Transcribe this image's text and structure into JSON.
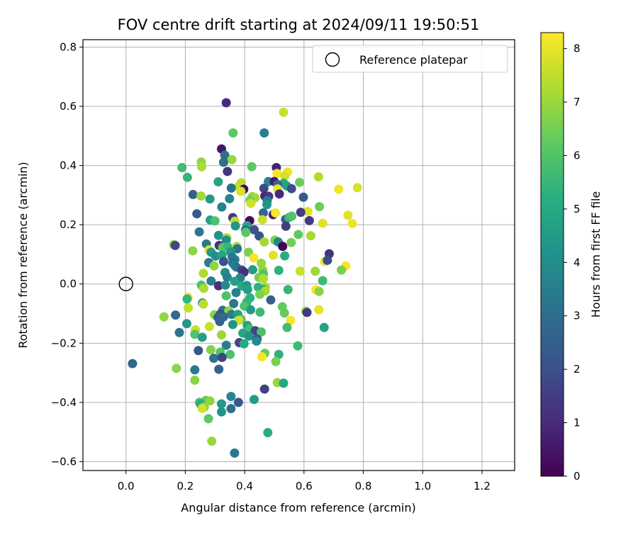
{
  "chart_data": {
    "type": "scatter",
    "title": "FOV centre drift starting at 2024/09/11 19:50:51",
    "xlabel": "Angular distance from reference (arcmin)",
    "ylabel": "Rotation from reference (arcmin)",
    "colorbar_label": "Hours from first FF file",
    "xlim": [
      -0.145,
      1.31
    ],
    "ylim": [
      -0.63,
      0.825
    ],
    "clim": [
      0,
      8.3
    ],
    "xticks": [
      "0.0",
      "0.2",
      "0.4",
      "0.6",
      "0.8",
      "1.0",
      "1.2"
    ],
    "yticks": [
      "−0.6",
      "−0.4",
      "−0.2",
      "0.0",
      "0.2",
      "0.4",
      "0.6",
      "0.8"
    ],
    "cticks": [
      "0",
      "1",
      "2",
      "3",
      "4",
      "5",
      "6",
      "7",
      "8"
    ],
    "grid": true,
    "colormap": "viridis",
    "legend": {
      "position": "top-right",
      "entries": [
        "Reference platepar"
      ]
    },
    "reference_point": {
      "x": 0.0,
      "y": 0.0
    },
    "points": [
      {
        "x": 0.338,
        "y": 0.612,
        "h": 1.0
      },
      {
        "x": 0.531,
        "y": 0.58,
        "h": 7.6
      },
      {
        "x": 0.361,
        "y": 0.51,
        "h": 6.2
      },
      {
        "x": 0.466,
        "y": 0.51,
        "h": 3.6
      },
      {
        "x": 0.322,
        "y": 0.456,
        "h": 0.5
      },
      {
        "x": 0.333,
        "y": 0.435,
        "h": 3.1
      },
      {
        "x": 0.357,
        "y": 0.42,
        "h": 7.0
      },
      {
        "x": 0.254,
        "y": 0.412,
        "h": 6.9
      },
      {
        "x": 0.329,
        "y": 0.411,
        "h": 3.0
      },
      {
        "x": 0.255,
        "y": 0.396,
        "h": 7.2
      },
      {
        "x": 0.189,
        "y": 0.393,
        "h": 5.7
      },
      {
        "x": 0.424,
        "y": 0.396,
        "h": 6.2
      },
      {
        "x": 0.507,
        "y": 0.393,
        "h": 0.8
      },
      {
        "x": 0.342,
        "y": 0.38,
        "h": 1.2
      },
      {
        "x": 0.509,
        "y": 0.373,
        "h": 8.2
      },
      {
        "x": 0.545,
        "y": 0.378,
        "h": 8.1
      },
      {
        "x": 0.535,
        "y": 0.365,
        "h": 7.7
      },
      {
        "x": 0.649,
        "y": 0.362,
        "h": 7.3
      },
      {
        "x": 0.207,
        "y": 0.36,
        "h": 5.4
      },
      {
        "x": 0.311,
        "y": 0.345,
        "h": 4.8
      },
      {
        "x": 0.48,
        "y": 0.346,
        "h": 3.8
      },
      {
        "x": 0.5,
        "y": 0.346,
        "h": 0.6
      },
      {
        "x": 0.389,
        "y": 0.342,
        "h": 7.4
      },
      {
        "x": 0.532,
        "y": 0.34,
        "h": 5.1
      },
      {
        "x": 0.585,
        "y": 0.343,
        "h": 6.4
      },
      {
        "x": 0.511,
        "y": 0.336,
        "h": 2.8
      },
      {
        "x": 0.542,
        "y": 0.331,
        "h": 4.8
      },
      {
        "x": 0.38,
        "y": 0.33,
        "h": 7.5
      },
      {
        "x": 0.355,
        "y": 0.324,
        "h": 3.1
      },
      {
        "x": 0.397,
        "y": 0.32,
        "h": 0.3
      },
      {
        "x": 0.387,
        "y": 0.313,
        "h": 7.8
      },
      {
        "x": 0.465,
        "y": 0.323,
        "h": 1.7
      },
      {
        "x": 0.511,
        "y": 0.321,
        "h": 8.0
      },
      {
        "x": 0.558,
        "y": 0.322,
        "h": 2.0
      },
      {
        "x": 0.717,
        "y": 0.32,
        "h": 8.1
      },
      {
        "x": 0.78,
        "y": 0.325,
        "h": 7.8
      },
      {
        "x": 0.226,
        "y": 0.302,
        "h": 2.6
      },
      {
        "x": 0.253,
        "y": 0.297,
        "h": 7.1
      },
      {
        "x": 0.426,
        "y": 0.295,
        "h": 7.0
      },
      {
        "x": 0.517,
        "y": 0.304,
        "h": 1.0
      },
      {
        "x": 0.598,
        "y": 0.293,
        "h": 2.3
      },
      {
        "x": 0.283,
        "y": 0.287,
        "h": 4.5
      },
      {
        "x": 0.349,
        "y": 0.288,
        "h": 3.7
      },
      {
        "x": 0.435,
        "y": 0.291,
        "h": 7.1
      },
      {
        "x": 0.468,
        "y": 0.297,
        "h": 0.9
      },
      {
        "x": 0.481,
        "y": 0.296,
        "h": 1.5
      },
      {
        "x": 0.418,
        "y": 0.283,
        "h": 6.5
      },
      {
        "x": 0.476,
        "y": 0.281,
        "h": 3.5
      },
      {
        "x": 0.421,
        "y": 0.272,
        "h": 7.7
      },
      {
        "x": 0.475,
        "y": 0.268,
        "h": 4.3
      },
      {
        "x": 0.323,
        "y": 0.26,
        "h": 3.7
      },
      {
        "x": 0.652,
        "y": 0.261,
        "h": 6.4
      },
      {
        "x": 0.613,
        "y": 0.245,
        "h": 7.9
      },
      {
        "x": 0.748,
        "y": 0.232,
        "h": 7.9
      },
      {
        "x": 0.239,
        "y": 0.237,
        "h": 2.4
      },
      {
        "x": 0.463,
        "y": 0.24,
        "h": 2.7
      },
      {
        "x": 0.496,
        "y": 0.234,
        "h": 0.7
      },
      {
        "x": 0.504,
        "y": 0.24,
        "h": 8.2
      },
      {
        "x": 0.589,
        "y": 0.242,
        "h": 1.4
      },
      {
        "x": 0.36,
        "y": 0.224,
        "h": 1.4
      },
      {
        "x": 0.46,
        "y": 0.217,
        "h": 7.6
      },
      {
        "x": 0.538,
        "y": 0.218,
        "h": 2.7
      },
      {
        "x": 0.55,
        "y": 0.225,
        "h": 5.6
      },
      {
        "x": 0.559,
        "y": 0.229,
        "h": 6.0
      },
      {
        "x": 0.618,
        "y": 0.214,
        "h": 1.4
      },
      {
        "x": 0.284,
        "y": 0.216,
        "h": 4.8
      },
      {
        "x": 0.3,
        "y": 0.213,
        "h": 5.9
      },
      {
        "x": 0.367,
        "y": 0.212,
        "h": 7.5
      },
      {
        "x": 0.417,
        "y": 0.214,
        "h": 0.2
      },
      {
        "x": 0.663,
        "y": 0.205,
        "h": 7.9
      },
      {
        "x": 0.763,
        "y": 0.204,
        "h": 8.1
      },
      {
        "x": 0.369,
        "y": 0.196,
        "h": 4.4
      },
      {
        "x": 0.408,
        "y": 0.197,
        "h": 4.9
      },
      {
        "x": 0.539,
        "y": 0.195,
        "h": 1.5
      },
      {
        "x": 0.403,
        "y": 0.183,
        "h": 3.3
      },
      {
        "x": 0.432,
        "y": 0.183,
        "h": 2.1
      },
      {
        "x": 0.404,
        "y": 0.174,
        "h": 6.2
      },
      {
        "x": 0.247,
        "y": 0.176,
        "h": 3.3
      },
      {
        "x": 0.312,
        "y": 0.164,
        "h": 4.2
      },
      {
        "x": 0.581,
        "y": 0.167,
        "h": 6.2
      },
      {
        "x": 0.623,
        "y": 0.163,
        "h": 7.2
      },
      {
        "x": 0.34,
        "y": 0.156,
        "h": 7.3
      },
      {
        "x": 0.449,
        "y": 0.162,
        "h": 2.1
      },
      {
        "x": 0.338,
        "y": 0.148,
        "h": 4.0
      },
      {
        "x": 0.466,
        "y": 0.142,
        "h": 7.1
      },
      {
        "x": 0.502,
        "y": 0.148,
        "h": 6.6
      },
      {
        "x": 0.513,
        "y": 0.142,
        "h": 3.7
      },
      {
        "x": 0.557,
        "y": 0.14,
        "h": 6.5
      },
      {
        "x": 0.161,
        "y": 0.133,
        "h": 7.0
      },
      {
        "x": 0.166,
        "y": 0.13,
        "h": 1.8
      },
      {
        "x": 0.271,
        "y": 0.135,
        "h": 3.3
      },
      {
        "x": 0.314,
        "y": 0.13,
        "h": 1.3
      },
      {
        "x": 0.326,
        "y": 0.123,
        "h": 6.2
      },
      {
        "x": 0.343,
        "y": 0.125,
        "h": 5.5
      },
      {
        "x": 0.373,
        "y": 0.127,
        "h": 7.4
      },
      {
        "x": 0.375,
        "y": 0.119,
        "h": 3.1
      },
      {
        "x": 0.528,
        "y": 0.127,
        "h": 0.1
      },
      {
        "x": 0.225,
        "y": 0.112,
        "h": 6.8
      },
      {
        "x": 0.28,
        "y": 0.115,
        "h": 7.9
      },
      {
        "x": 0.287,
        "y": 0.107,
        "h": 4.5
      },
      {
        "x": 0.353,
        "y": 0.108,
        "h": 4.4
      },
      {
        "x": 0.413,
        "y": 0.107,
        "h": 6.6
      },
      {
        "x": 0.685,
        "y": 0.102,
        "h": 1.2
      },
      {
        "x": 0.302,
        "y": 0.094,
        "h": 4.0
      },
      {
        "x": 0.324,
        "y": 0.098,
        "h": 4.9
      },
      {
        "x": 0.358,
        "y": 0.091,
        "h": 3.3
      },
      {
        "x": 0.496,
        "y": 0.097,
        "h": 7.9
      },
      {
        "x": 0.535,
        "y": 0.095,
        "h": 5.1
      },
      {
        "x": 0.367,
        "y": 0.082,
        "h": 3.4
      },
      {
        "x": 0.431,
        "y": 0.088,
        "h": 8.2
      },
      {
        "x": 0.279,
        "y": 0.072,
        "h": 3.4
      },
      {
        "x": 0.329,
        "y": 0.076,
        "h": 2.1
      },
      {
        "x": 0.36,
        "y": 0.071,
        "h": 2.9
      },
      {
        "x": 0.67,
        "y": 0.076,
        "h": 8.0
      },
      {
        "x": 0.679,
        "y": 0.08,
        "h": 1.9
      },
      {
        "x": 0.456,
        "y": 0.07,
        "h": 6.9
      },
      {
        "x": 0.297,
        "y": 0.061,
        "h": 6.9
      },
      {
        "x": 0.366,
        "y": 0.063,
        "h": 3.7
      },
      {
        "x": 0.372,
        "y": 0.057,
        "h": 3.3
      },
      {
        "x": 0.741,
        "y": 0.061,
        "h": 8.2
      },
      {
        "x": 0.726,
        "y": 0.047,
        "h": 6.6
      },
      {
        "x": 0.39,
        "y": 0.047,
        "h": 1.8
      },
      {
        "x": 0.398,
        "y": 0.04,
        "h": 1.1
      },
      {
        "x": 0.427,
        "y": 0.048,
        "h": 4.5
      },
      {
        "x": 0.461,
        "y": 0.047,
        "h": 6.9
      },
      {
        "x": 0.515,
        "y": 0.046,
        "h": 5.3
      },
      {
        "x": 0.587,
        "y": 0.043,
        "h": 7.6
      },
      {
        "x": 0.261,
        "y": 0.036,
        "h": 7.3
      },
      {
        "x": 0.334,
        "y": 0.039,
        "h": 4.0
      },
      {
        "x": 0.463,
        "y": 0.034,
        "h": 6.0
      },
      {
        "x": 0.638,
        "y": 0.043,
        "h": 7.0
      },
      {
        "x": 0.341,
        "y": 0.023,
        "h": 3.6
      },
      {
        "x": 0.385,
        "y": 0.021,
        "h": 3.6
      },
      {
        "x": 0.448,
        "y": 0.022,
        "h": 6.5
      },
      {
        "x": 0.463,
        "y": 0.018,
        "h": 7.3
      },
      {
        "x": 0.287,
        "y": 0.01,
        "h": 3.5
      },
      {
        "x": 0.366,
        "y": 0.009,
        "h": 4.7
      },
      {
        "x": 0.663,
        "y": 0.011,
        "h": 5.6
      },
      {
        "x": 0.254,
        "y": -0.004,
        "h": 5.9
      },
      {
        "x": 0.312,
        "y": -0.006,
        "h": 1.1
      },
      {
        "x": 0.335,
        "y": -0.004,
        "h": 3.9
      },
      {
        "x": 0.39,
        "y": -0.007,
        "h": 5.0
      },
      {
        "x": 0.407,
        "y": -0.005,
        "h": 4.4
      },
      {
        "x": 0.446,
        "y": -0.011,
        "h": 5.3
      },
      {
        "x": 0.47,
        "y": -0.011,
        "h": 7.1
      },
      {
        "x": 0.262,
        "y": -0.015,
        "h": 7.2
      },
      {
        "x": 0.41,
        "y": -0.019,
        "h": 4.7
      },
      {
        "x": 0.463,
        "y": -0.019,
        "h": 5.1
      },
      {
        "x": 0.546,
        "y": -0.019,
        "h": 5.5
      },
      {
        "x": 0.64,
        "y": -0.02,
        "h": 8.2
      },
      {
        "x": 0.651,
        "y": -0.025,
        "h": 6.8
      },
      {
        "x": 0.469,
        "y": -0.024,
        "h": 7.2
      },
      {
        "x": 0.371,
        "y": -0.029,
        "h": 3.5
      },
      {
        "x": 0.451,
        "y": -0.035,
        "h": 6.6
      },
      {
        "x": 0.209,
        "y": -0.045,
        "h": 8.0
      },
      {
        "x": 0.338,
        "y": -0.04,
        "h": 5.9
      },
      {
        "x": 0.418,
        "y": -0.047,
        "h": 5.3
      },
      {
        "x": 0.206,
        "y": -0.051,
        "h": 5.4
      },
      {
        "x": 0.488,
        "y": -0.054,
        "h": 2.5
      },
      {
        "x": 0.21,
        "y": -0.081,
        "h": 7.5
      },
      {
        "x": 0.258,
        "y": -0.064,
        "h": 4.3
      },
      {
        "x": 0.261,
        "y": -0.068,
        "h": 7.4
      },
      {
        "x": 0.407,
        "y": -0.062,
        "h": 5.4
      },
      {
        "x": 0.363,
        "y": -0.066,
        "h": 3.3
      },
      {
        "x": 0.399,
        "y": -0.075,
        "h": 5.9
      },
      {
        "x": 0.527,
        "y": -0.077,
        "h": 6.3
      },
      {
        "x": 0.42,
        "y": -0.087,
        "h": 4.5
      },
      {
        "x": 0.326,
        "y": -0.089,
        "h": 3.1
      },
      {
        "x": 0.346,
        "y": -0.091,
        "h": 6.9
      },
      {
        "x": 0.606,
        "y": -0.092,
        "h": 7.1
      },
      {
        "x": 0.61,
        "y": -0.096,
        "h": 1.4
      },
      {
        "x": 0.452,
        "y": -0.095,
        "h": 5.6
      },
      {
        "x": 0.534,
        "y": -0.098,
        "h": 6.3
      },
      {
        "x": 0.65,
        "y": -0.087,
        "h": 8.0
      },
      {
        "x": 0.298,
        "y": -0.104,
        "h": 6.8
      },
      {
        "x": 0.318,
        "y": -0.102,
        "h": 2.0
      },
      {
        "x": 0.356,
        "y": -0.103,
        "h": 3.5
      },
      {
        "x": 0.377,
        "y": -0.103,
        "h": 4.6
      },
      {
        "x": 0.167,
        "y": -0.105,
        "h": 2.8
      },
      {
        "x": 0.128,
        "y": -0.111,
        "h": 6.9
      },
      {
        "x": 0.31,
        "y": -0.113,
        "h": 2.4
      },
      {
        "x": 0.329,
        "y": -0.111,
        "h": 2.9
      },
      {
        "x": 0.388,
        "y": -0.12,
        "h": 6.0
      },
      {
        "x": 0.38,
        "y": -0.123,
        "h": 7.7
      },
      {
        "x": 0.316,
        "y": -0.127,
        "h": 2.7
      },
      {
        "x": 0.555,
        "y": -0.123,
        "h": 8.2
      },
      {
        "x": 0.36,
        "y": -0.137,
        "h": 4.3
      },
      {
        "x": 0.409,
        "y": -0.14,
        "h": 4.8
      },
      {
        "x": 0.205,
        "y": -0.134,
        "h": 4.4
      },
      {
        "x": 0.281,
        "y": -0.144,
        "h": 7.6
      },
      {
        "x": 0.543,
        "y": -0.147,
        "h": 5.7
      },
      {
        "x": 0.668,
        "y": -0.147,
        "h": 4.8
      },
      {
        "x": 0.234,
        "y": -0.155,
        "h": 7.6
      },
      {
        "x": 0.417,
        "y": -0.152,
        "h": 5.7
      },
      {
        "x": 0.436,
        "y": -0.158,
        "h": 1.7
      },
      {
        "x": 0.394,
        "y": -0.166,
        "h": 4.9
      },
      {
        "x": 0.456,
        "y": -0.162,
        "h": 5.9
      },
      {
        "x": 0.18,
        "y": -0.164,
        "h": 3.2
      },
      {
        "x": 0.232,
        "y": -0.17,
        "h": 6.0
      },
      {
        "x": 0.322,
        "y": -0.172,
        "h": 7.0
      },
      {
        "x": 0.415,
        "y": -0.176,
        "h": 4.2
      },
      {
        "x": 0.257,
        "y": -0.18,
        "h": 4.6
      },
      {
        "x": 0.442,
        "y": -0.186,
        "h": 2.2
      },
      {
        "x": 0.44,
        "y": -0.193,
        "h": 3.9
      },
      {
        "x": 0.382,
        "y": -0.198,
        "h": 1.7
      },
      {
        "x": 0.398,
        "y": -0.202,
        "h": 5.0
      },
      {
        "x": 0.338,
        "y": -0.207,
        "h": 3.5
      },
      {
        "x": 0.579,
        "y": -0.209,
        "h": 5.6
      },
      {
        "x": 0.244,
        "y": -0.225,
        "h": 2.2
      },
      {
        "x": 0.286,
        "y": -0.222,
        "h": 6.7
      },
      {
        "x": 0.318,
        "y": -0.23,
        "h": 6.0
      },
      {
        "x": 0.351,
        "y": -0.238,
        "h": 5.9
      },
      {
        "x": 0.468,
        "y": -0.234,
        "h": 6.4
      },
      {
        "x": 0.515,
        "y": -0.238,
        "h": 5.3
      },
      {
        "x": 0.458,
        "y": -0.246,
        "h": 8.2
      },
      {
        "x": 0.296,
        "y": -0.251,
        "h": 3.1
      },
      {
        "x": 0.324,
        "y": -0.248,
        "h": 1.7
      },
      {
        "x": 0.505,
        "y": -0.262,
        "h": 6.6
      },
      {
        "x": 0.022,
        "y": -0.269,
        "h": 2.8
      },
      {
        "x": 0.17,
        "y": -0.285,
        "h": 6.8
      },
      {
        "x": 0.232,
        "y": -0.29,
        "h": 3.3
      },
      {
        "x": 0.313,
        "y": -0.288,
        "h": 2.6
      },
      {
        "x": 0.232,
        "y": -0.325,
        "h": 6.8
      },
      {
        "x": 0.51,
        "y": -0.333,
        "h": 7.0
      },
      {
        "x": 0.531,
        "y": -0.335,
        "h": 4.9
      },
      {
        "x": 0.467,
        "y": -0.355,
        "h": 1.6
      },
      {
        "x": 0.354,
        "y": -0.38,
        "h": 3.7
      },
      {
        "x": 0.432,
        "y": -0.39,
        "h": 4.5
      },
      {
        "x": 0.27,
        "y": -0.393,
        "h": 6.3
      },
      {
        "x": 0.283,
        "y": -0.395,
        "h": 6.9
      },
      {
        "x": 0.248,
        "y": -0.4,
        "h": 5.8
      },
      {
        "x": 0.251,
        "y": -0.406,
        "h": 5.2
      },
      {
        "x": 0.322,
        "y": -0.405,
        "h": 4.4
      },
      {
        "x": 0.379,
        "y": -0.4,
        "h": 2.3
      },
      {
        "x": 0.264,
        "y": -0.416,
        "h": 6.8
      },
      {
        "x": 0.257,
        "y": -0.42,
        "h": 7.7
      },
      {
        "x": 0.354,
        "y": -0.421,
        "h": 3.0
      },
      {
        "x": 0.322,
        "y": -0.432,
        "h": 4.3
      },
      {
        "x": 0.278,
        "y": -0.455,
        "h": 6.2
      },
      {
        "x": 0.478,
        "y": -0.502,
        "h": 5.2
      },
      {
        "x": 0.289,
        "y": -0.531,
        "h": 7.0
      },
      {
        "x": 0.366,
        "y": -0.571,
        "h": 3.3
      }
    ]
  }
}
